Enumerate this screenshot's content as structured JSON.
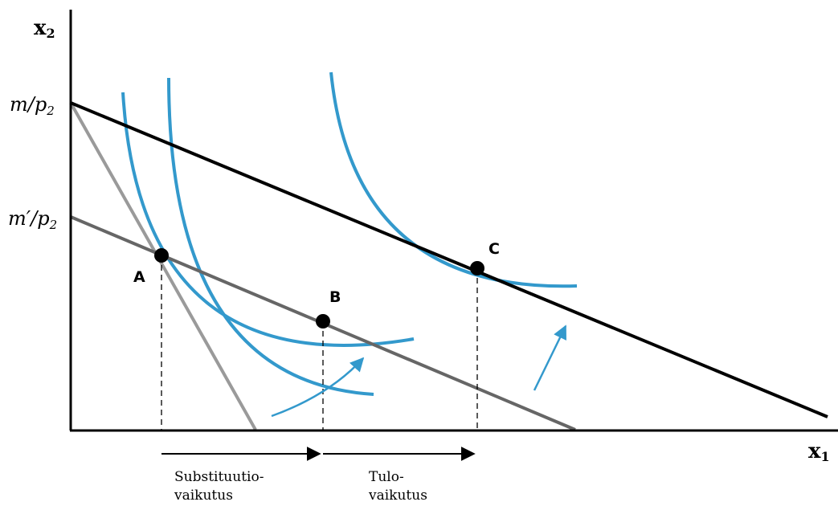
{
  "axes": {
    "y_title": "x",
    "y_sub": "2",
    "x_title": "x",
    "x_sub": "1"
  },
  "y_labels": {
    "m_over_p2": {
      "m": "m/p",
      "sub": "2"
    },
    "m_prime_over_p2": {
      "m": "m′/p",
      "sub": "2"
    }
  },
  "points": {
    "a": "A",
    "b": "B",
    "c": "C"
  },
  "effects": {
    "substitution_line1": "Substituutio-",
    "substitution_line2": "vaikutus",
    "income_line1": "Tulo-",
    "income_line2": "vaikutus"
  },
  "colors": {
    "indifference": "#3399cc",
    "budget_original": "#000000",
    "budget_pivoted": "#9a9a9a",
    "budget_compensated": "#666666",
    "axis": "#000000"
  }
}
